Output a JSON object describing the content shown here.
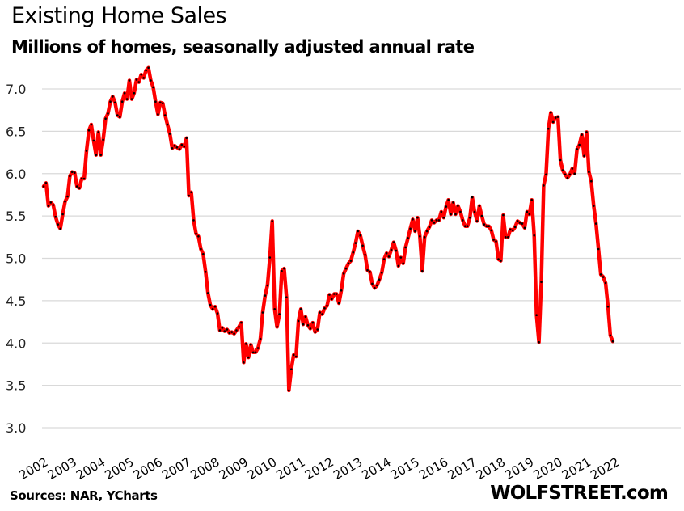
{
  "chart_data": {
    "type": "line",
    "title": "Existing Home Sales",
    "subtitle": "Millions of homes, seasonally adjusted annual rate",
    "xlabel": "",
    "ylabel": "",
    "ylim": [
      3.0,
      7.0
    ],
    "yticks": [
      "3.0",
      "3.5",
      "4.0",
      "4.5",
      "5.0",
      "5.5",
      "6.0",
      "6.5",
      "7.0"
    ],
    "ytick_values": [
      3.0,
      3.5,
      4.0,
      4.5,
      5.0,
      5.5,
      6.0,
      6.5,
      7.0
    ],
    "xticks": [
      "2002",
      "2003",
      "2004",
      "2005",
      "2006",
      "2007",
      "2008",
      "2009",
      "2010",
      "2011",
      "2012",
      "2013",
      "2014",
      "2015",
      "2016",
      "2017",
      "2018",
      "2019",
      "2020",
      "2021",
      "2022"
    ],
    "grid": true,
    "legend": "none",
    "line_color": "#ff0000",
    "marker_color": "#000000",
    "series": [
      {
        "name": "Existing Home Sales",
        "start": "2002-01",
        "frequency": "monthly",
        "values": [
          5.85,
          5.89,
          5.62,
          5.66,
          5.63,
          5.49,
          5.4,
          5.35,
          5.52,
          5.67,
          5.73,
          5.97,
          6.02,
          6.01,
          5.85,
          5.83,
          5.94,
          5.94,
          6.27,
          6.51,
          6.58,
          6.39,
          6.22,
          6.49,
          6.22,
          6.4,
          6.65,
          6.71,
          6.85,
          6.91,
          6.84,
          6.69,
          6.67,
          6.85,
          6.95,
          6.88,
          7.1,
          6.88,
          6.95,
          7.11,
          7.08,
          7.17,
          7.13,
          7.22,
          7.25,
          7.1,
          7.02,
          6.85,
          6.7,
          6.84,
          6.83,
          6.69,
          6.58,
          6.47,
          6.3,
          6.33,
          6.31,
          6.29,
          6.34,
          6.32,
          6.42,
          5.74,
          5.78,
          5.45,
          5.29,
          5.26,
          5.11,
          5.05,
          4.84,
          4.59,
          4.45,
          4.4,
          4.43,
          4.35,
          4.15,
          4.18,
          4.14,
          4.16,
          4.12,
          4.13,
          4.11,
          4.15,
          4.19,
          4.24,
          3.77,
          3.99,
          3.83,
          3.98,
          3.89,
          3.89,
          3.94,
          4.05,
          4.36,
          4.56,
          4.68,
          5.01,
          5.44,
          4.4,
          4.19,
          4.34,
          4.85,
          4.88,
          4.54,
          3.44,
          3.69,
          3.86,
          3.84,
          4.26,
          4.4,
          4.22,
          4.31,
          4.21,
          4.17,
          4.24,
          4.13,
          4.16,
          4.36,
          4.34,
          4.41,
          4.44,
          4.57,
          4.52,
          4.58,
          4.58,
          4.47,
          4.62,
          4.82,
          4.88,
          4.94,
          4.97,
          5.07,
          5.18,
          5.32,
          5.27,
          5.15,
          5.04,
          4.86,
          4.84,
          4.7,
          4.65,
          4.68,
          4.75,
          4.83,
          4.99,
          5.06,
          5.02,
          5.1,
          5.19,
          5.09,
          4.91,
          5.01,
          4.94,
          5.13,
          5.24,
          5.35,
          5.46,
          5.32,
          5.48,
          5.26,
          4.85,
          5.25,
          5.32,
          5.37,
          5.45,
          5.42,
          5.45,
          5.45,
          5.55,
          5.48,
          5.61,
          5.69,
          5.52,
          5.66,
          5.52,
          5.62,
          5.55,
          5.45,
          5.38,
          5.38,
          5.48,
          5.72,
          5.55,
          5.44,
          5.62,
          5.5,
          5.4,
          5.38,
          5.38,
          5.33,
          5.22,
          5.2,
          4.99,
          4.97,
          5.51,
          5.25,
          5.25,
          5.34,
          5.33,
          5.37,
          5.44,
          5.42,
          5.41,
          5.36,
          5.55,
          5.52,
          5.69,
          5.27,
          4.33,
          4.01,
          4.72,
          5.86,
          5.99,
          6.53,
          6.72,
          6.61,
          6.66,
          6.67,
          6.16,
          6.04,
          5.99,
          5.95,
          5.99,
          6.06,
          6.0,
          6.29,
          6.34,
          6.46,
          6.21,
          6.49,
          6.02,
          5.91,
          5.62,
          5.41,
          5.11,
          4.81,
          4.78,
          4.71,
          4.43,
          4.09,
          4.02
        ]
      }
    ]
  },
  "footer": {
    "source": "Sources: NAR, YCharts",
    "brand": "WOLFSTREET.com"
  }
}
